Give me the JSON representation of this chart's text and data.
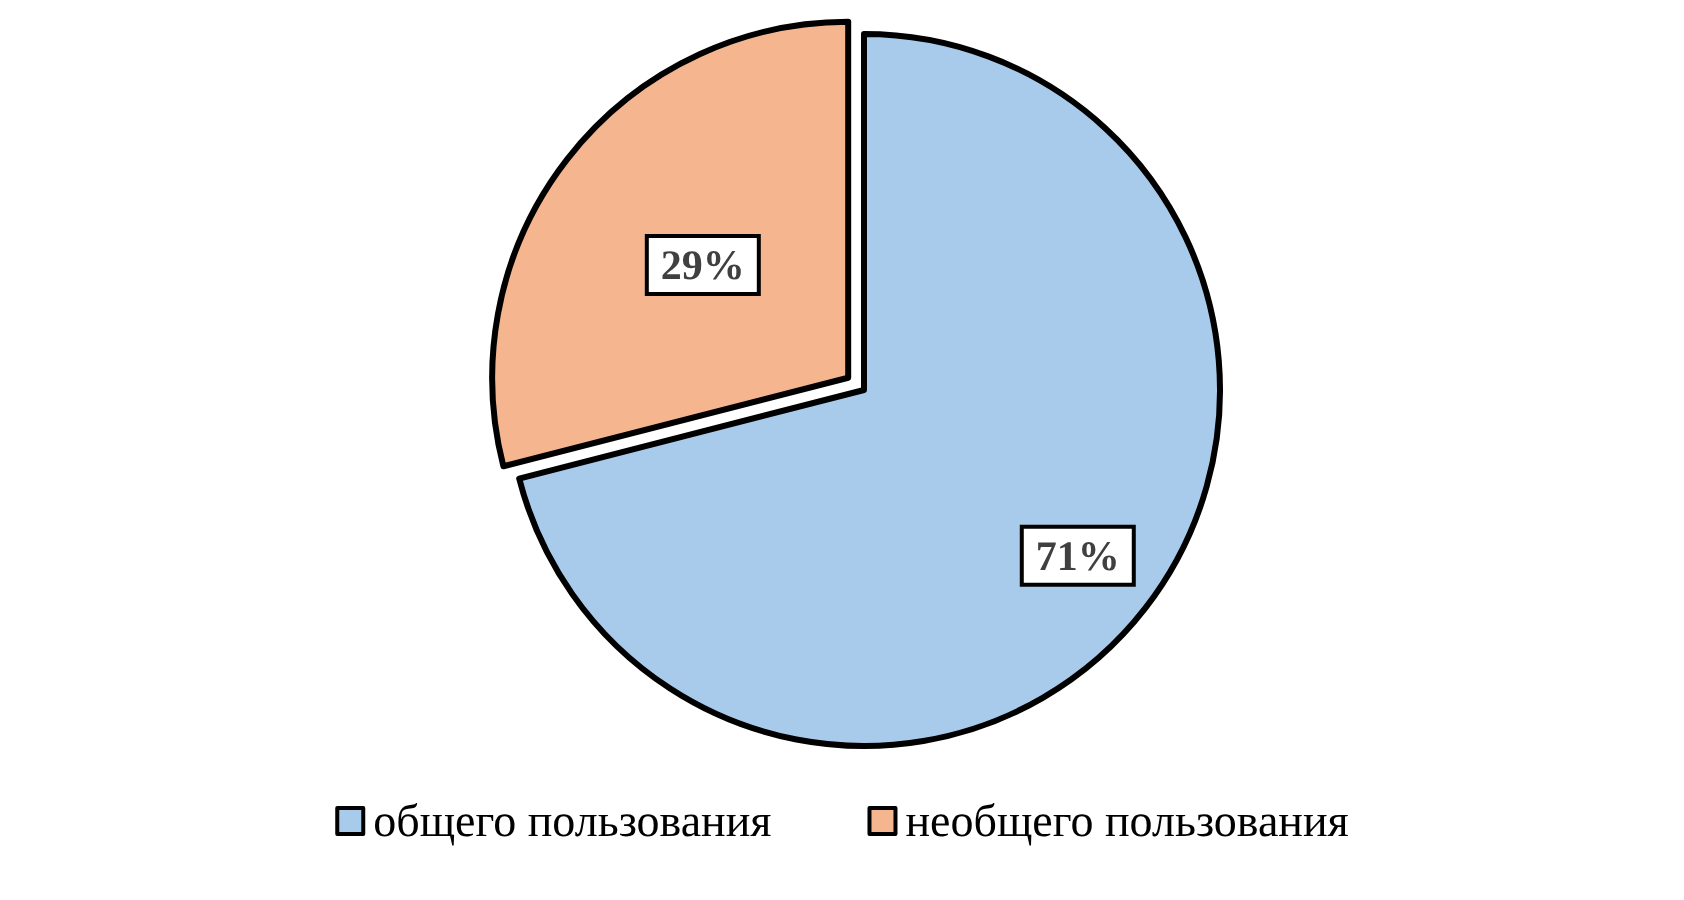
{
  "chart_data": {
    "type": "pie",
    "categories": [
      "общего пользования",
      "необщего пользования"
    ],
    "values": [
      71,
      29
    ],
    "colors": [
      "#a9cbeb",
      "#f5b68f"
    ],
    "value_labels": [
      "71%",
      "29%"
    ],
    "legend": "bottom"
  }
}
